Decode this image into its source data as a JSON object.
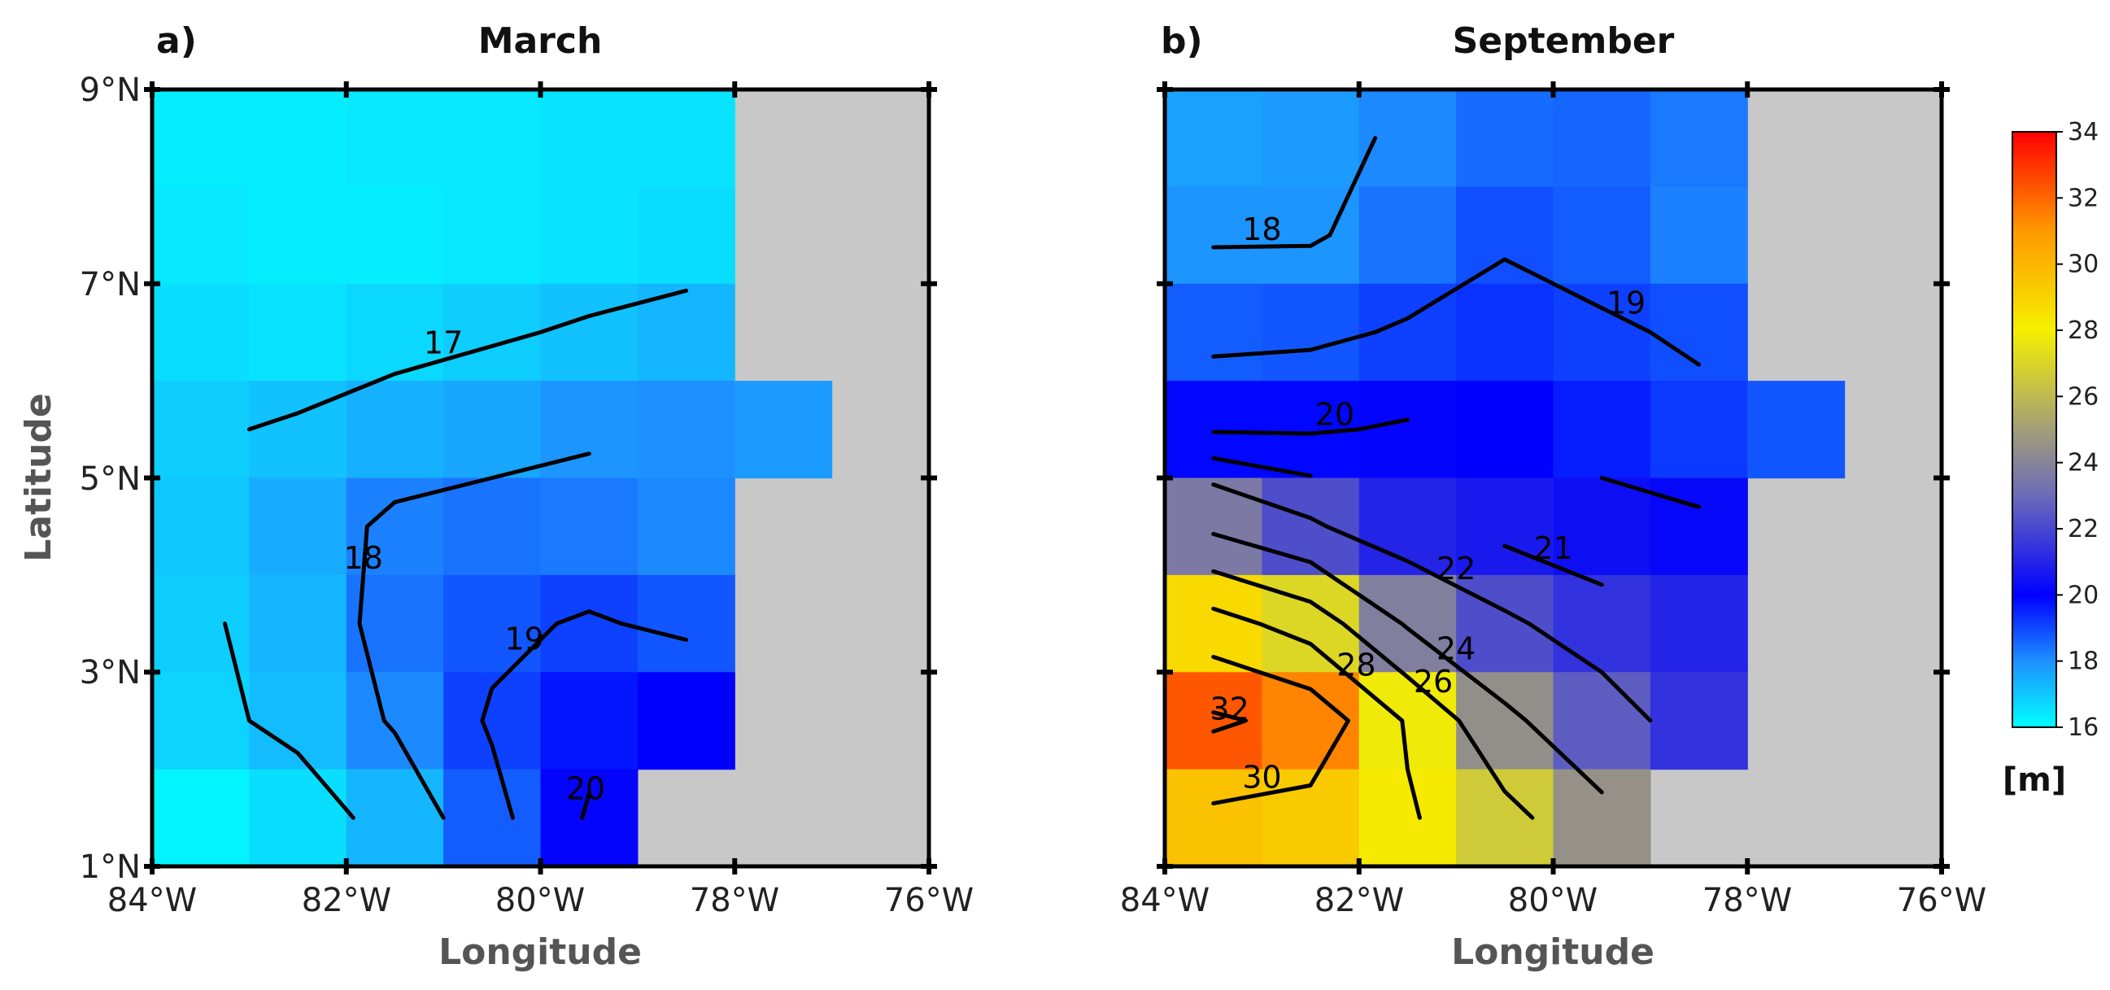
{
  "chart_data": [
    {
      "type": "heatmap",
      "panel_label": "a)",
      "title": "March",
      "xlabel": "Longitude",
      "ylabel": "Latitude",
      "xlim": [
        -84,
        -76
      ],
      "ylim": [
        1,
        9
      ],
      "x_ticks": [
        -84,
        -82,
        -80,
        -78,
        -76
      ],
      "x_tick_labels": [
        "84°W",
        "82°W",
        "80°W",
        "78°W",
        "76°W"
      ],
      "y_ticks": [
        1,
        3,
        5,
        7,
        9
      ],
      "y_tick_labels": [
        "1°N",
        "3°N",
        "5°N",
        "7°N",
        "9°N"
      ],
      "units": "m",
      "grid_x": [
        -83.5,
        -82.5,
        -81.5,
        -80.5,
        -79.5,
        -78.5,
        -77.5
      ],
      "grid_y": [
        8.5,
        7.5,
        6.5,
        5.5,
        4.5,
        3.5,
        2.5,
        1.5
      ],
      "values": [
        [
          16.3,
          16.3,
          16.4,
          16.4,
          16.5,
          16.5,
          null
        ],
        [
          16.4,
          16.3,
          16.3,
          16.4,
          16.5,
          16.6,
          null
        ],
        [
          16.6,
          16.5,
          16.7,
          16.9,
          17.1,
          17.3,
          null
        ],
        [
          16.9,
          17.1,
          17.4,
          17.6,
          17.9,
          18.0,
          17.8
        ],
        [
          17.0,
          17.5,
          18.2,
          18.4,
          18.3,
          18.1,
          null
        ],
        [
          16.9,
          17.3,
          18.4,
          18.8,
          19.1,
          18.8,
          null
        ],
        [
          16.8,
          17.2,
          18.1,
          19.1,
          19.7,
          20.0,
          null
        ],
        [
          16.2,
          16.6,
          17.3,
          18.7,
          20.1,
          null,
          null
        ]
      ],
      "contour_levels": [
        17,
        18,
        19,
        20
      ],
      "contour_labels": [
        "17",
        "18",
        "19",
        "20"
      ]
    },
    {
      "type": "heatmap",
      "panel_label": "b)",
      "title": "September",
      "xlabel": "Longitude",
      "ylabel": "",
      "xlim": [
        -84,
        -76
      ],
      "ylim": [
        1,
        9
      ],
      "x_ticks": [
        -84,
        -82,
        -80,
        -78,
        -76
      ],
      "x_tick_labels": [
        "84°W",
        "82°W",
        "80°W",
        "78°W",
        "76°W"
      ],
      "y_ticks": [
        1,
        3,
        5,
        7,
        9
      ],
      "y_tick_labels": [
        "",
        "",
        "",
        "",
        ""
      ],
      "units": "m",
      "grid_x": [
        -83.5,
        -82.5,
        -81.5,
        -80.5,
        -79.5,
        -78.5,
        -77.5
      ],
      "grid_y": [
        8.5,
        7.5,
        6.5,
        5.5,
        4.5,
        3.5,
        2.5,
        1.5
      ],
      "values": [
        [
          17.7,
          17.8,
          18.1,
          18.5,
          18.6,
          18.3,
          null
        ],
        [
          17.9,
          17.9,
          18.4,
          18.9,
          18.7,
          18.2,
          null
        ],
        [
          18.7,
          18.8,
          19.1,
          19.3,
          19.1,
          18.9,
          null
        ],
        [
          19.9,
          19.9,
          20.1,
          20.0,
          19.6,
          19.2,
          18.8
        ],
        [
          23.6,
          22.2,
          21.0,
          20.7,
          20.4,
          20.2,
          null
        ],
        [
          28.8,
          27.1,
          23.8,
          22.2,
          21.4,
          21.0,
          null
        ],
        [
          32.3,
          31.4,
          27.8,
          24.4,
          22.6,
          21.4,
          null
        ],
        [
          29.6,
          29.3,
          28.2,
          26.6,
          24.5,
          null,
          null
        ]
      ],
      "contour_levels": [
        18,
        19,
        20,
        21,
        22,
        24,
        26,
        28,
        30,
        32
      ],
      "contour_labels": [
        "18",
        "19",
        "20",
        "21",
        "22",
        "24",
        "26",
        "28",
        "30",
        "32"
      ]
    }
  ],
  "colorbar": {
    "min": 16,
    "max": 34,
    "tick_labels": [
      "16",
      "18",
      "20",
      "22",
      "24",
      "26",
      "28",
      "30",
      "32",
      "34"
    ],
    "unit_label": "[m]",
    "colors": [
      "#00ffff",
      "#1e90ff",
      "#0000ff",
      "#6b6bb8",
      "#a39e78",
      "#f5f000",
      "#ff9900",
      "#ff0000"
    ]
  },
  "land_color": "#c8c8c8",
  "coast_color": "#ffffff"
}
